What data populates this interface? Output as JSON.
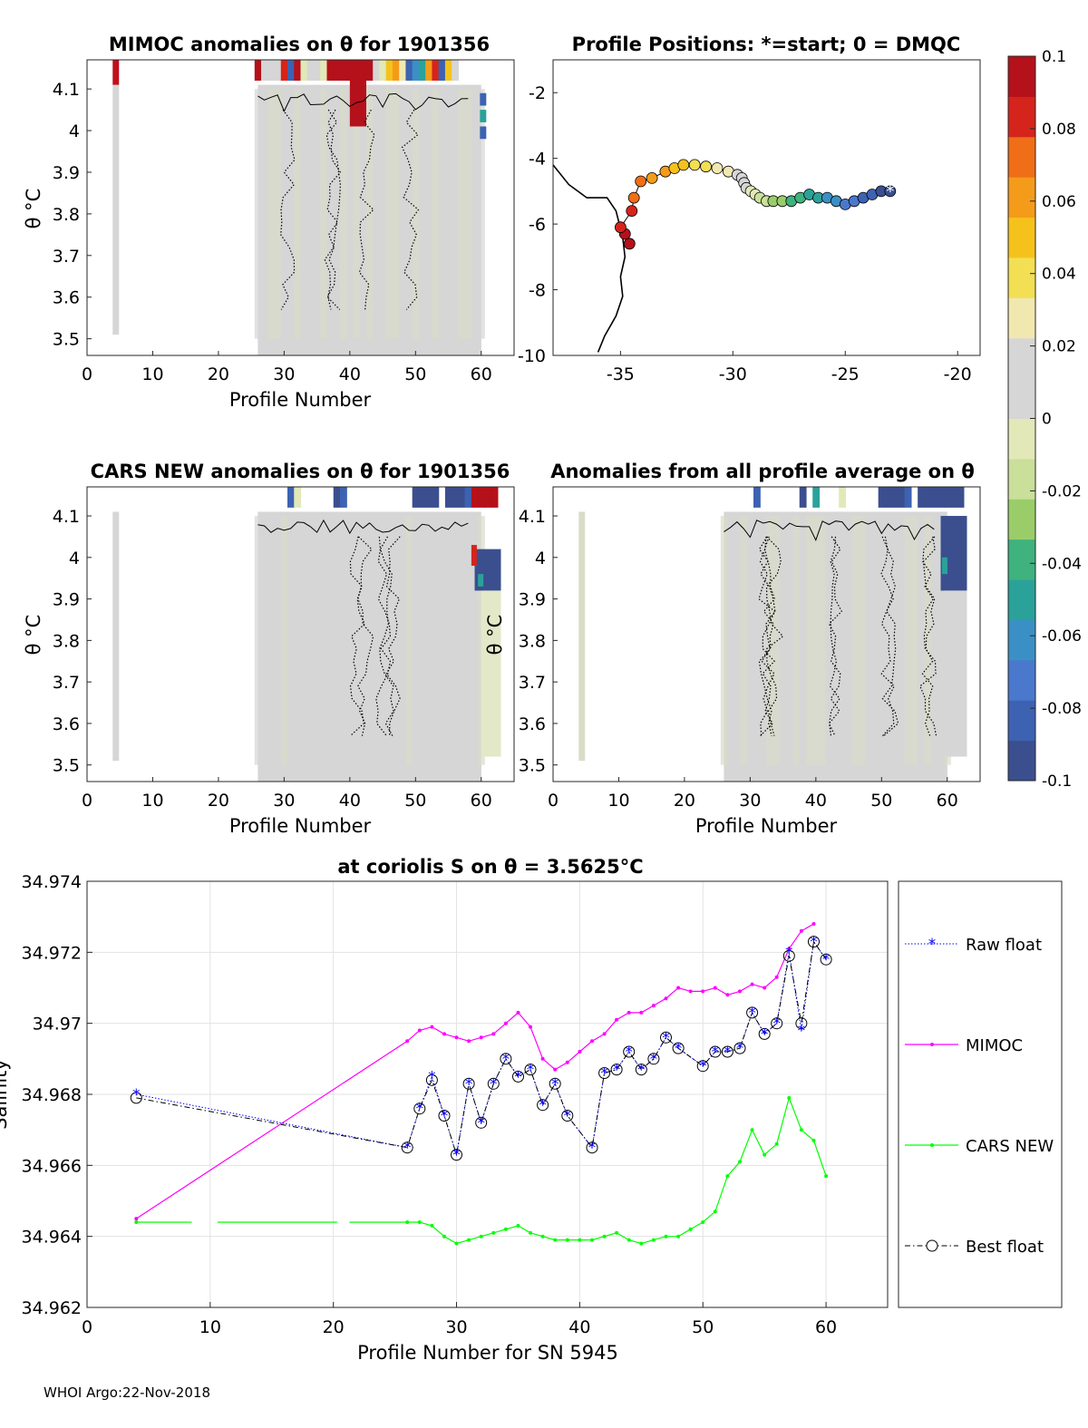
{
  "footer": "WHOI Argo:22-Nov-2018",
  "colors": {
    "mimoc": "#ff00ff",
    "cars": "#00ff00",
    "raw": "#0000ff",
    "best": "#000000",
    "bg_gray": "#d6d6d6",
    "colormap": [
      "#3b4f8f",
      "#3d62b2",
      "#4a78cc",
      "#3a90c4",
      "#2aa29a",
      "#3fb27e",
      "#9acd6a",
      "#cadf9a",
      "#e3e8b8",
      "#d6d6d6",
      "#d6d6d6",
      "#f1e8b0",
      "#f2df54",
      "#f5c21c",
      "#f59b1a",
      "#ef6e17",
      "#d5241b",
      "#b5111b"
    ]
  },
  "panels": {
    "mimoc": {
      "title": "MIMOC anomalies on θ  for 1901356",
      "xlabel": "Profile Number",
      "ylabel": "θ °C",
      "xticks": [
        "0",
        "10",
        "20",
        "30",
        "40",
        "50",
        "60"
      ],
      "yticks": [
        "4.1",
        "4",
        "3.9",
        "3.8",
        "3.7",
        "3.6",
        "3.5"
      ],
      "xlim": [
        0,
        65
      ],
      "ylim": [
        3.46,
        4.17
      ]
    },
    "positions": {
      "title": "Profile Positions: *=start; 0 = DMQC",
      "xticks": [
        "-35",
        "-30",
        "-25",
        "-20"
      ],
      "yticks": [
        "-2",
        "-4",
        "-6",
        "-8",
        "-10"
      ],
      "xlim": [
        -38,
        -19
      ],
      "ylim": [
        -10,
        -1
      ]
    },
    "cars": {
      "title": "CARS NEW anomalies on θ for 1901356",
      "xlabel": "Profile Number",
      "ylabel": "θ °C",
      "xticks": [
        "0",
        "10",
        "20",
        "30",
        "40",
        "50",
        "60"
      ],
      "yticks": [
        "4.1",
        "4",
        "3.9",
        "3.8",
        "3.7",
        "3.6",
        "3.5"
      ],
      "xlim": [
        0,
        65
      ],
      "ylim": [
        3.46,
        4.17
      ]
    },
    "allprof": {
      "title": "Anomalies from all profile average on θ",
      "xlabel": "Profile Number",
      "ylabel": "θ °C",
      "xticks": [
        "0",
        "10",
        "20",
        "30",
        "40",
        "50",
        "60"
      ],
      "yticks": [
        "4.1",
        "4",
        "3.9",
        "3.8",
        "3.7",
        "3.6",
        "3.5"
      ],
      "xlim": [
        0,
        65
      ],
      "ylim": [
        3.46,
        4.17
      ]
    },
    "colorbar": {
      "ticks": [
        "0.1",
        "0.08",
        "0.06",
        "0.04",
        "0.02",
        "0",
        "-0.02",
        "-0.04",
        "-0.06",
        "-0.08",
        "-0.1"
      ]
    }
  },
  "chart_data": {
    "type": "line",
    "title": "at coriolis S on θ = 3.5625°C",
    "xlabel": "Profile Number for SN 5945",
    "ylabel": "Salinity",
    "xlim": [
      0,
      65
    ],
    "ylim": [
      34.962,
      34.974
    ],
    "xticks": [
      "0",
      "10",
      "20",
      "30",
      "40",
      "50",
      "60"
    ],
    "yticks": [
      "34.974",
      "34.972",
      "34.97",
      "34.968",
      "34.966",
      "34.964",
      "34.962"
    ],
    "legend": [
      "Raw float",
      "MIMOC",
      "CARS NEW",
      "Best float"
    ],
    "legend_position": "right",
    "series": [
      {
        "name": "Raw float",
        "x": [
          4,
          26,
          27,
          28,
          29,
          30,
          31,
          32,
          33,
          34,
          35,
          36,
          37,
          38,
          39,
          41,
          42,
          43,
          44,
          45,
          46,
          47,
          48,
          50,
          51,
          52,
          53,
          54,
          55,
          56,
          57,
          58,
          59,
          60
        ],
        "values": [
          34.968,
          34.9665,
          34.9676,
          34.9685,
          34.9674,
          34.9663,
          34.9683,
          34.9672,
          34.9683,
          34.969,
          34.9685,
          34.9687,
          34.9677,
          34.9683,
          34.9674,
          34.9665,
          34.9686,
          34.9687,
          34.9692,
          34.9687,
          34.969,
          34.9696,
          34.9693,
          34.9688,
          34.9692,
          34.9692,
          34.9693,
          34.9703,
          34.9697,
          34.97,
          34.972,
          34.9698,
          34.9723,
          34.9718
        ]
      },
      {
        "name": "MIMOC",
        "x": [
          4,
          26,
          27,
          28,
          29,
          30,
          31,
          32,
          33,
          34,
          35,
          36,
          37,
          38,
          39,
          40,
          41,
          42,
          43,
          44,
          45,
          46,
          47,
          48,
          49,
          50,
          51,
          52,
          53,
          54,
          55,
          56,
          57,
          58,
          59
        ],
        "values": [
          34.9645,
          34.9695,
          34.9698,
          34.9699,
          34.9697,
          34.9696,
          34.9695,
          34.9696,
          34.9697,
          34.97,
          34.9703,
          34.9699,
          34.969,
          34.9687,
          34.9689,
          34.9692,
          34.9695,
          34.9697,
          34.9701,
          34.9703,
          34.9703,
          34.9705,
          34.9707,
          34.971,
          34.9709,
          34.9709,
          34.971,
          34.9708,
          34.9709,
          34.9711,
          34.971,
          34.9713,
          34.9721,
          34.9726,
          34.9728
        ]
      },
      {
        "name": "CARS NEW",
        "x": [
          4,
          26,
          27,
          28,
          29,
          30,
          31,
          32,
          33,
          34,
          35,
          36,
          37,
          38,
          39,
          40,
          41,
          42,
          43,
          44,
          45,
          46,
          47,
          48,
          49,
          50,
          51,
          52,
          53,
          54,
          55,
          56,
          57,
          58,
          59,
          60
        ],
        "values": [
          34.9644,
          34.9644,
          34.9644,
          34.9643,
          34.964,
          34.9638,
          34.9639,
          34.964,
          34.9641,
          34.9642,
          34.9643,
          34.9641,
          34.964,
          34.9639,
          34.9639,
          34.9639,
          34.9639,
          34.964,
          34.9641,
          34.9639,
          34.9638,
          34.9639,
          34.964,
          34.964,
          34.9642,
          34.9644,
          34.9647,
          34.9657,
          34.9661,
          34.967,
          34.9663,
          34.9666,
          34.9679,
          34.967,
          34.9667,
          34.9657
        ]
      },
      {
        "name": "Best float",
        "x": [
          4,
          26,
          27,
          28,
          29,
          30,
          31,
          32,
          33,
          34,
          35,
          36,
          37,
          38,
          39,
          41,
          42,
          43,
          44,
          45,
          46,
          47,
          48,
          50,
          51,
          52,
          53,
          54,
          55,
          56,
          57,
          58,
          59,
          60
        ],
        "values": [
          34.9679,
          34.9665,
          34.9676,
          34.9684,
          34.9674,
          34.9663,
          34.9683,
          34.9672,
          34.9683,
          34.969,
          34.9685,
          34.9687,
          34.9677,
          34.9683,
          34.9674,
          34.9665,
          34.9686,
          34.9687,
          34.9692,
          34.9687,
          34.969,
          34.9696,
          34.9693,
          34.9688,
          34.9692,
          34.9692,
          34.9693,
          34.9703,
          34.9697,
          34.97,
          34.9719,
          34.97,
          34.9723,
          34.9718
        ]
      }
    ],
    "cars_gaps": [
      [
        8.5,
        10.5
      ],
      [
        20.5,
        21.5
      ]
    ]
  }
}
